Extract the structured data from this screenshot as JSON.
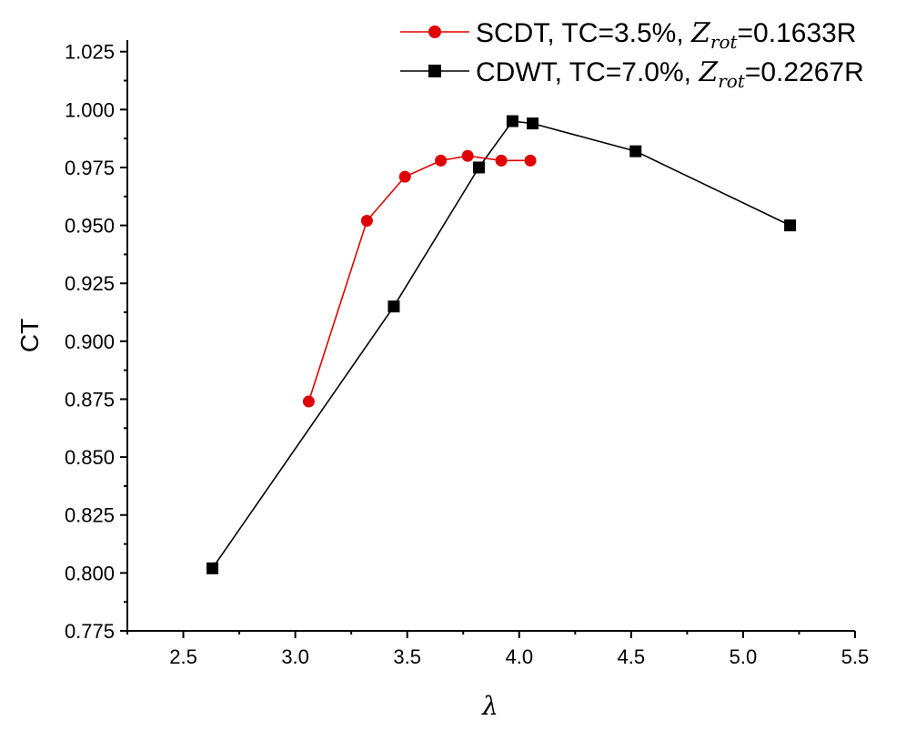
{
  "chart_data": {
    "type": "line",
    "title": "",
    "xlabel": "λ",
    "ylabel": "CT",
    "xlim": [
      2.25,
      5.5
    ],
    "ylim": [
      0.775,
      1.03
    ],
    "xticks": [
      "2.5",
      "3.0",
      "3.5",
      "4.0",
      "4.5",
      "5.0",
      "5.5"
    ],
    "yticks": [
      "0.775",
      "0.800",
      "0.825",
      "0.850",
      "0.875",
      "0.900",
      "0.925",
      "0.950",
      "0.975",
      "1.000",
      "1.025"
    ],
    "grid": false,
    "legend_position": "top-right",
    "series": [
      {
        "name": "SCDT, TC=3.5%, Zrot=0.1633R",
        "legend_prefix": "SCDT, TC=3.5%, ",
        "legend_symbol": "Z",
        "legend_subscript": "rot",
        "legend_suffix": "=0.1633R",
        "color": "#e00000",
        "marker": "circle",
        "x": [
          3.06,
          3.32,
          3.49,
          3.65,
          3.77,
          3.92,
          4.05
        ],
        "y": [
          0.874,
          0.952,
          0.971,
          0.978,
          0.98,
          0.978,
          0.978
        ]
      },
      {
        "name": "CDWT, TC=7.0%, Zrot=0.2267R",
        "legend_prefix": "CDWT, TC=7.0%, ",
        "legend_symbol": "Z",
        "legend_subscript": "rot",
        "legend_suffix": "=0.2267R",
        "color": "#000000",
        "marker": "square",
        "x": [
          2.63,
          3.44,
          3.82,
          3.97,
          4.06,
          4.52,
          5.21
        ],
        "y": [
          0.802,
          0.915,
          0.975,
          0.995,
          0.994,
          0.982,
          0.95
        ]
      }
    ]
  }
}
